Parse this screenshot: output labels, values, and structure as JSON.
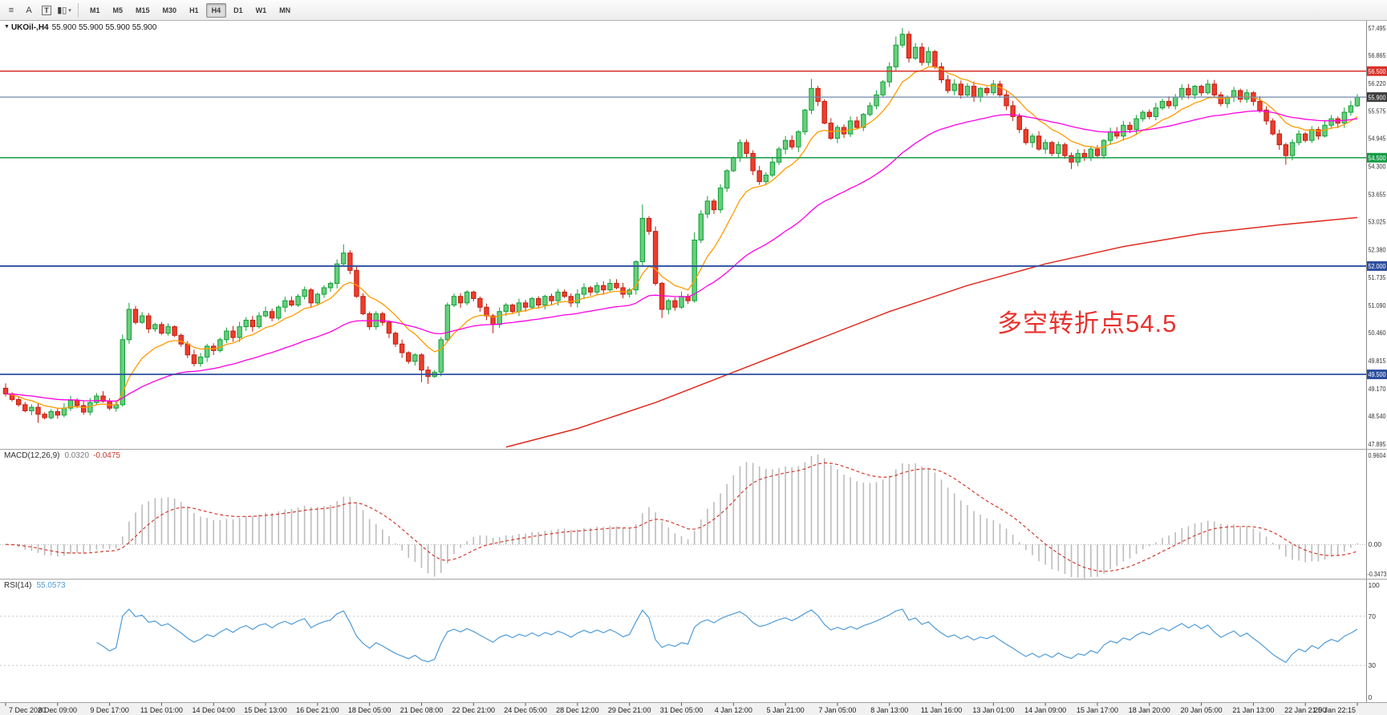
{
  "toolbar": {
    "tools": [
      {
        "name": "charts-toolbar-icon",
        "glyph": "≡"
      },
      {
        "name": "arrow-cursor-tool",
        "glyph": "A"
      },
      {
        "name": "text-label-tool",
        "glyph": "T",
        "boxed": true
      },
      {
        "name": "chart-type-tool",
        "glyph": "▮▯",
        "caret": "▾"
      }
    ],
    "timeframes": [
      "M1",
      "M5",
      "M15",
      "M30",
      "H1",
      "H4",
      "D1",
      "W1",
      "MN"
    ],
    "active_timeframe": "H4"
  },
  "main_chart": {
    "expander_icon": "▼",
    "symbol": "UKOil-,H4",
    "quote_line": "55.900 55.900 55.900 55.900",
    "annotation": {
      "text": "多空转折点54.5",
      "color": "#e8322e"
    },
    "price_axis_labels": [
      "57.495",
      "56.865",
      "56.220",
      "55.575",
      "54.945",
      "54.300",
      "53.655",
      "53.025",
      "52.380",
      "51.735",
      "51.090",
      "50.460",
      "49.815",
      "49.170",
      "48.540",
      "47.895"
    ],
    "scale": {
      "min": 47.78,
      "max": 57.66
    },
    "hlines": [
      {
        "value": 56.5,
        "label": "56.500",
        "color": "#d93026"
      },
      {
        "value": 54.5,
        "label": "54.500",
        "color": "#169c46"
      },
      {
        "value": 52.0,
        "label": "52.000",
        "color": "#2d4e9e"
      },
      {
        "value": 49.5,
        "label": "49.500",
        "color": "#2d4e9e"
      }
    ],
    "current_price": {
      "value": 55.9,
      "label": "55.900",
      "line_color": "#7089a8",
      "label_bg": "#3d3d3d"
    }
  },
  "chart_data": {
    "type": "candlestick",
    "symbol": "UKOil-",
    "timeframe": "H4",
    "first_open": 49.18,
    "closes": [
      49.05,
      48.92,
      48.8,
      48.66,
      48.74,
      48.58,
      48.5,
      48.64,
      48.56,
      48.72,
      48.9,
      48.78,
      48.63,
      48.85,
      49.0,
      48.88,
      48.72,
      48.8,
      50.3,
      51.0,
      50.7,
      50.85,
      50.55,
      50.65,
      50.45,
      50.6,
      50.4,
      50.2,
      49.95,
      49.75,
      49.9,
      50.15,
      50.05,
      50.3,
      50.5,
      50.35,
      50.6,
      50.75,
      50.6,
      50.85,
      50.95,
      50.8,
      51.05,
      51.2,
      51.1,
      51.3,
      51.45,
      51.15,
      51.35,
      51.5,
      51.6,
      52.05,
      52.3,
      51.9,
      51.3,
      50.9,
      50.6,
      50.9,
      50.7,
      50.45,
      50.2,
      50.0,
      49.8,
      49.95,
      49.6,
      49.45,
      49.55,
      50.3,
      51.1,
      51.3,
      51.15,
      51.4,
      51.25,
      51.05,
      50.85,
      50.65,
      50.95,
      51.1,
      50.95,
      51.15,
      51.05,
      51.25,
      51.1,
      51.3,
      51.2,
      51.4,
      51.3,
      51.15,
      51.35,
      51.5,
      51.4,
      51.55,
      51.45,
      51.6,
      51.5,
      51.35,
      51.45,
      52.1,
      53.1,
      52.8,
      51.6,
      51.0,
      51.2,
      51.05,
      51.3,
      51.2,
      52.6,
      53.2,
      53.5,
      53.3,
      53.8,
      54.2,
      54.5,
      54.85,
      54.6,
      54.2,
      53.95,
      54.1,
      54.4,
      54.7,
      54.9,
      54.75,
      55.1,
      55.6,
      56.1,
      55.8,
      55.3,
      54.95,
      55.2,
      55.05,
      55.35,
      55.2,
      55.5,
      55.7,
      55.95,
      56.25,
      56.6,
      57.1,
      57.35,
      56.8,
      57.05,
      56.7,
      56.95,
      56.6,
      56.3,
      56.05,
      56.2,
      55.95,
      56.15,
      55.9,
      56.1,
      56.0,
      56.2,
      55.95,
      55.7,
      55.45,
      55.15,
      54.85,
      55.0,
      54.7,
      54.85,
      54.6,
      54.8,
      54.55,
      54.4,
      54.6,
      54.5,
      54.7,
      54.55,
      54.9,
      55.1,
      55.0,
      55.25,
      55.15,
      55.4,
      55.55,
      55.45,
      55.65,
      55.8,
      55.7,
      55.9,
      56.1,
      55.95,
      56.15,
      56.0,
      56.2,
      55.95,
      55.75,
      55.9,
      56.05,
      55.85,
      56.0,
      55.8,
      55.6,
      55.35,
      55.05,
      54.8,
      54.55,
      54.85,
      55.05,
      54.9,
      55.15,
      55.0,
      55.25,
      55.4,
      55.3,
      55.55,
      55.7,
      55.9
    ],
    "high_overrides": {
      "18": 50.42,
      "19": 51.15,
      "52": 52.5,
      "98": 53.42,
      "106": 52.78,
      "124": 56.32,
      "137": 57.3,
      "138": 57.49,
      "185": 56.3
    },
    "low_overrides": {
      "5": 48.38,
      "64": 49.32,
      "65": 49.28,
      "75": 50.45,
      "101": 50.8,
      "164": 54.24,
      "197": 54.34
    },
    "colors": {
      "up_fill": "#67cf7c",
      "up_stroke": "#119f37",
      "down_fill": "#ee3d2c",
      "down_stroke": "#bf1f10",
      "ma_fast": "#ff9b00",
      "ma_mid": "#ff00e1",
      "ma_slow": "#e02a1e"
    },
    "ma_fast_period": 10,
    "ma_mid_period": 40,
    "ma_slow_points": [
      [
        77,
        47.82
      ],
      [
        88,
        48.25
      ],
      [
        100,
        48.85
      ],
      [
        112,
        49.55
      ],
      [
        124,
        50.25
      ],
      [
        136,
        50.95
      ],
      [
        148,
        51.55
      ],
      [
        160,
        52.05
      ],
      [
        172,
        52.45
      ],
      [
        184,
        52.75
      ],
      [
        196,
        52.95
      ],
      [
        208,
        53.12
      ]
    ]
  },
  "macd_panel": {
    "title": "MACD(12,26,9)",
    "main_value": "0.0320",
    "signal_value": "-0.0475",
    "axis_labels": [
      "0.9604",
      "0.00",
      "-0.3473"
    ],
    "scale": {
      "min": -0.3473,
      "max": 0.9604
    },
    "params": {
      "fast": 12,
      "slow": 26,
      "signal": 9
    },
    "colors": {
      "histogram": "#bcbcbc",
      "signal": "#d23a2e"
    }
  },
  "rsi_panel": {
    "title": "RSI(14)",
    "value": "55.0573",
    "period": 14,
    "axis_labels": [
      "100",
      "70",
      "30",
      "0"
    ],
    "levels": [
      70,
      30
    ],
    "color": "#4f9bd8"
  },
  "time_axis": {
    "bars_per_label": 8,
    "labels": [
      "7 Dec 2020",
      "8 Dec 09:00",
      "9 Dec 17:00",
      "11 Dec 01:00",
      "14 Dec 04:00",
      "15 Dec 13:00",
      "16 Dec 21:00",
      "18 Dec 05:00",
      "21 Dec 08:00",
      "22 Dec 21:00",
      "24 Dec 05:00",
      "28 Dec 12:00",
      "29 Dec 21:00",
      "31 Dec 05:00",
      "4 Jan 12:00",
      "5 Jan 21:00",
      "7 Jan 05:00",
      "8 Jan 13:00",
      "11 Jan 16:00",
      "13 Jan 01:00",
      "14 Jan 09:00",
      "15 Jan 17:00",
      "18 Jan 20:00",
      "20 Jan 05:00",
      "21 Jan 13:00",
      "22 Jan 21:00",
      "25 Jan 22:15"
    ]
  }
}
